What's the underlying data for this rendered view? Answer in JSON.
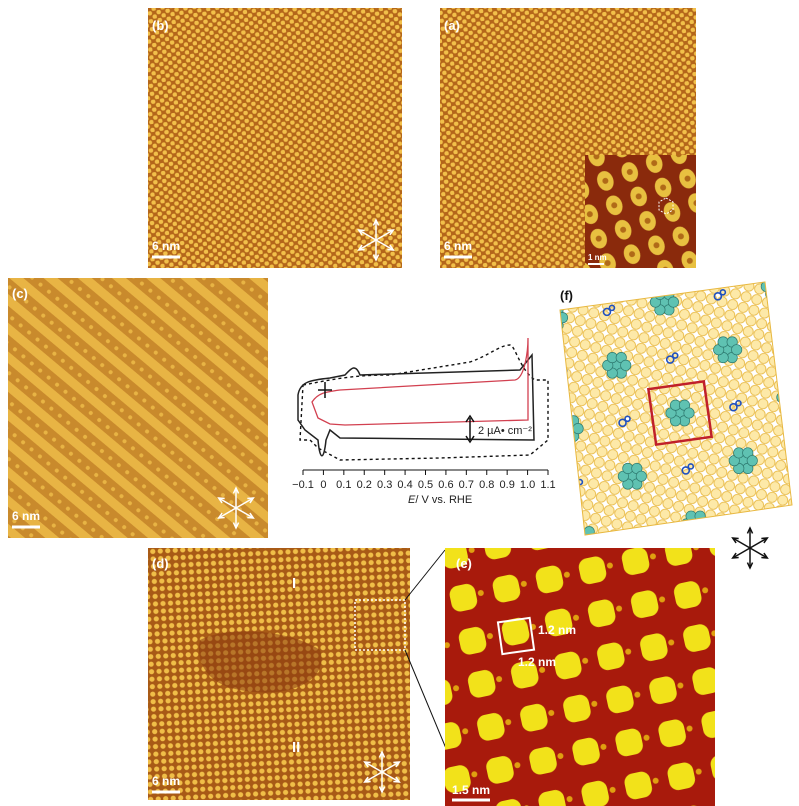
{
  "panels": {
    "b": {
      "label": "(b)",
      "scale_bar": "6 nm"
    },
    "a": {
      "label": "(a)",
      "scale_bar": "6 nm",
      "inset_scale_bar": "1 nm"
    },
    "c": {
      "label": "(c)",
      "scale_bar": "6 nm"
    },
    "d": {
      "label": "(d)",
      "scale_bar": "6 nm",
      "domain_1": "I",
      "domain_2": "II"
    },
    "e": {
      "label": "(e)",
      "scale_bar": "1.5 nm",
      "cell_a": "1.2 nm",
      "cell_b": "1.2 nm"
    },
    "f": {
      "label": "(f)"
    }
  },
  "cv": {
    "x_label_symbol": "E",
    "x_label": "/ V vs. RHE",
    "current_scale": "2 µA• cm⁻²",
    "xlim": [
      -0.1,
      1.1
    ],
    "xticks": [
      {
        "value": -0.1,
        "label": "−0.1"
      },
      0,
      0.1,
      0.2,
      0.3,
      0.4,
      0.5,
      0.6,
      0.7,
      0.8,
      0.9,
      {
        "value": 1,
        "label": "1.0"
      },
      1.1
    ]
  }
}
